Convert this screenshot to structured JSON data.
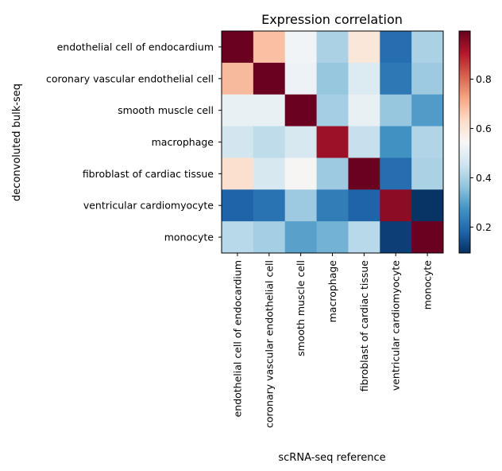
{
  "chart_data": {
    "type": "heatmap",
    "title": "Expression correlation",
    "xlabel": "scRNA-seq reference",
    "ylabel": "deconvoluted bulk-seq",
    "x_categories": [
      "endothelial cell of endocardium",
      "coronary vascular endothelial cell",
      "smooth muscle cell",
      "macrophage",
      "fibroblast of cardiac tissue",
      "ventricular cardiomyocyte",
      "monocyte"
    ],
    "y_categories": [
      "endothelial cell of endocardium",
      "coronary vascular endothelial cell",
      "smooth muscle cell",
      "macrophage",
      "fibroblast of cardiac tissue",
      "ventricular cardiomyocyte",
      "monocyte"
    ],
    "values": [
      [
        0.99,
        0.68,
        0.53,
        0.4,
        0.6,
        0.2,
        0.4
      ],
      [
        0.69,
        0.99,
        0.52,
        0.37,
        0.48,
        0.22,
        0.38
      ],
      [
        0.51,
        0.51,
        0.99,
        0.39,
        0.51,
        0.37,
        0.29
      ],
      [
        0.46,
        0.43,
        0.47,
        0.93,
        0.44,
        0.27,
        0.41
      ],
      [
        0.62,
        0.47,
        0.55,
        0.38,
        0.99,
        0.2,
        0.4
      ],
      [
        0.18,
        0.21,
        0.38,
        0.23,
        0.18,
        0.95,
        0.1
      ],
      [
        0.42,
        0.39,
        0.3,
        0.33,
        0.42,
        0.12,
        0.99
      ]
    ],
    "colormap": "RdBu_r",
    "vmin": 0.095,
    "vmax": 0.995,
    "colorbar_ticks": [
      "0.2",
      "0.4",
      "0.6",
      "0.8"
    ],
    "grid": false
  }
}
